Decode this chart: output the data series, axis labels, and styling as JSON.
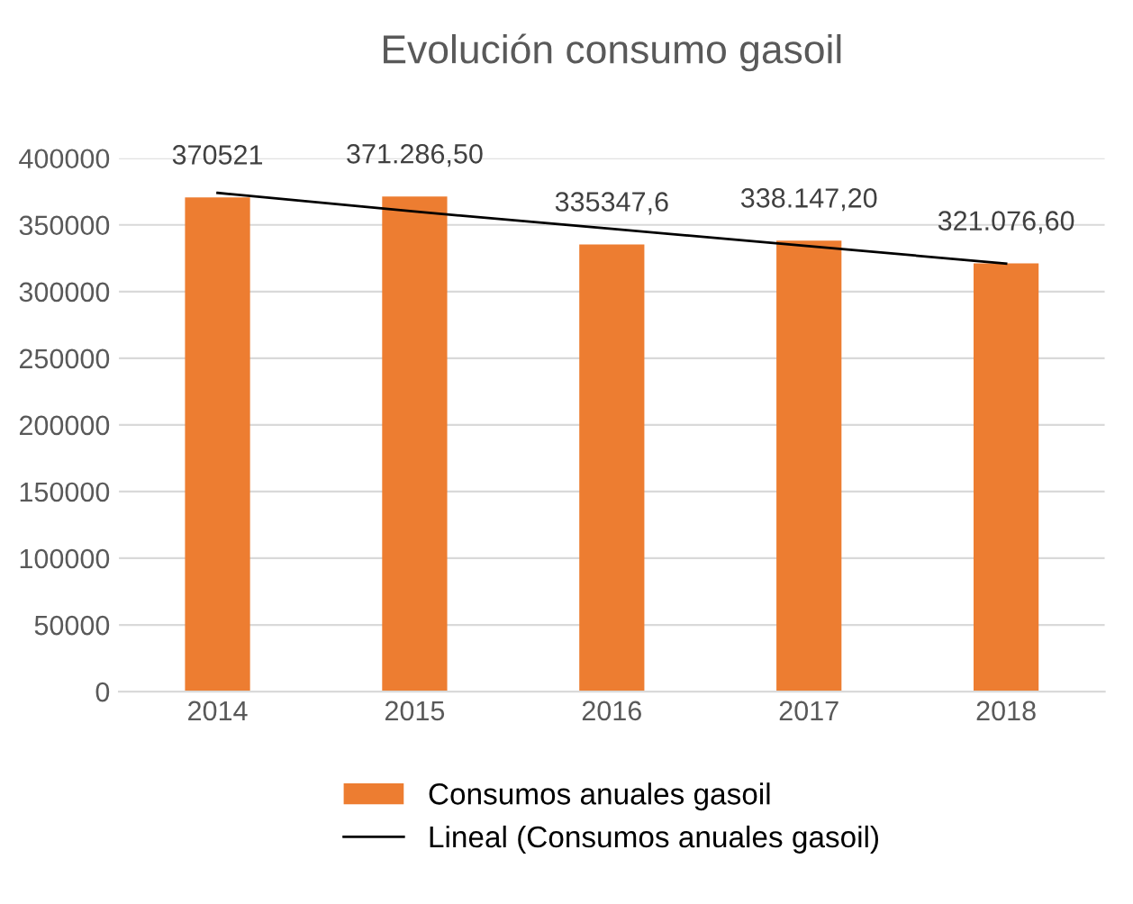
{
  "chart_data": {
    "type": "bar",
    "title": "Evolución consumo gasoil",
    "categories": [
      "2014",
      "2015",
      "2016",
      "2017",
      "2018"
    ],
    "series": [
      {
        "name": "Consumos anuales gasoil",
        "color": "#ed7d31",
        "values": [
          370521,
          371286.5,
          335347.6,
          338147.2,
          321076.6
        ],
        "value_labels": [
          "370521",
          "371.286,50",
          "335347,6",
          "338.147,20",
          "321.076,60"
        ]
      },
      {
        "name": "Lineal (Consumos anuales gasoil)",
        "type": "line",
        "color": "#000000",
        "values": [
          374000,
          360000,
          347000,
          334000,
          321000
        ]
      }
    ],
    "ylim": [
      0,
      400000
    ],
    "yticks": [
      0,
      50000,
      100000,
      150000,
      200000,
      250000,
      300000,
      350000,
      400000
    ],
    "grid": "y",
    "legend": "bottom"
  }
}
